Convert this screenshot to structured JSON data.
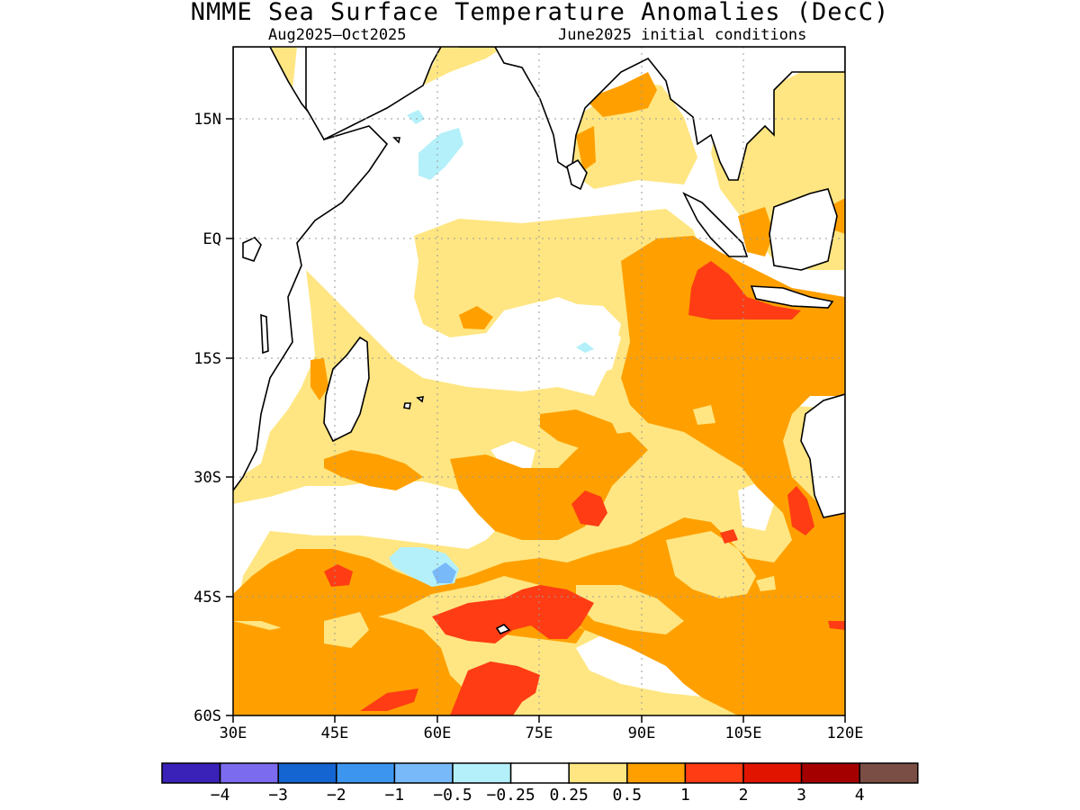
{
  "title": "NMME Sea Surface Temperature Anomalies (DecC)",
  "subtitle_left": "Aug2025—Oct2025",
  "subtitle_right": "June2025 initial conditions",
  "map": {
    "region": "Indian Ocean",
    "lon_range": [
      30,
      120
    ],
    "lat_range": [
      -60,
      24
    ],
    "lon_ticks": [
      "30E",
      "45E",
      "60E",
      "75E",
      "90E",
      "105E",
      "120E"
    ],
    "lat_ticks": [
      "15N",
      "EQ",
      "15S",
      "30S",
      "45S",
      "60S"
    ],
    "grid": true
  },
  "colorbar": {
    "colors": [
      "#3a22b8",
      "#7b6bee",
      "#1464d2",
      "#3c96f0",
      "#78b9fa",
      "#b4f0fa",
      "#ffffff",
      "#ffe682",
      "#ffa000",
      "#ff3c14",
      "#e11400",
      "#a50000",
      "#7a4e44"
    ],
    "labels": [
      "−4",
      "−3",
      "−2",
      "−1",
      "−0.5",
      "−0.25",
      "0.25",
      "0.5",
      "1",
      "2",
      "3",
      "4"
    ]
  }
}
